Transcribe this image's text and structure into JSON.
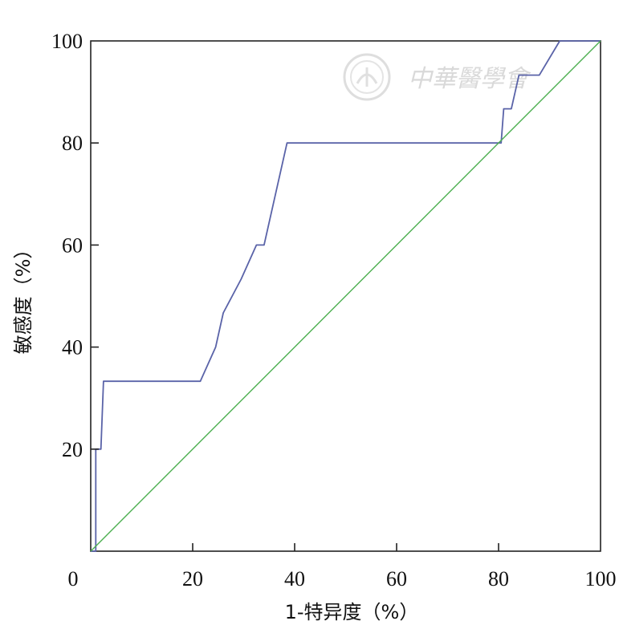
{
  "chart_data": {
    "type": "line",
    "xlabel": "1-特异度（%）",
    "ylabel": "敏感度（%）",
    "xlim": [
      0,
      100
    ],
    "ylim": [
      0,
      100
    ],
    "x_ticks": [
      0,
      20,
      40,
      60,
      80,
      100
    ],
    "y_ticks": [
      20,
      40,
      60,
      80,
      100
    ],
    "grid": false,
    "series": [
      {
        "color": "#5a63a8",
        "x": [
          0,
          1,
          1,
          2,
          2.5,
          3,
          21.5,
          24.5,
          26,
          29.5,
          32.5,
          34,
          38.5,
          80,
          80.5,
          81,
          82.5,
          84,
          86,
          88,
          92,
          100
        ],
        "y": [
          0,
          0,
          20,
          20,
          33.3,
          33.3,
          33.3,
          40,
          46.7,
          53.3,
          60,
          60,
          80,
          80,
          80,
          86.7,
          86.7,
          93.3,
          93.3,
          93.3,
          100,
          100
        ]
      },
      {
        "color": "#4caf50",
        "x": [
          0,
          100
        ],
        "y": [
          0,
          100
        ]
      }
    ]
  },
  "watermark": {
    "text": "中華醫學會",
    "color": "#d9d9d9"
  }
}
